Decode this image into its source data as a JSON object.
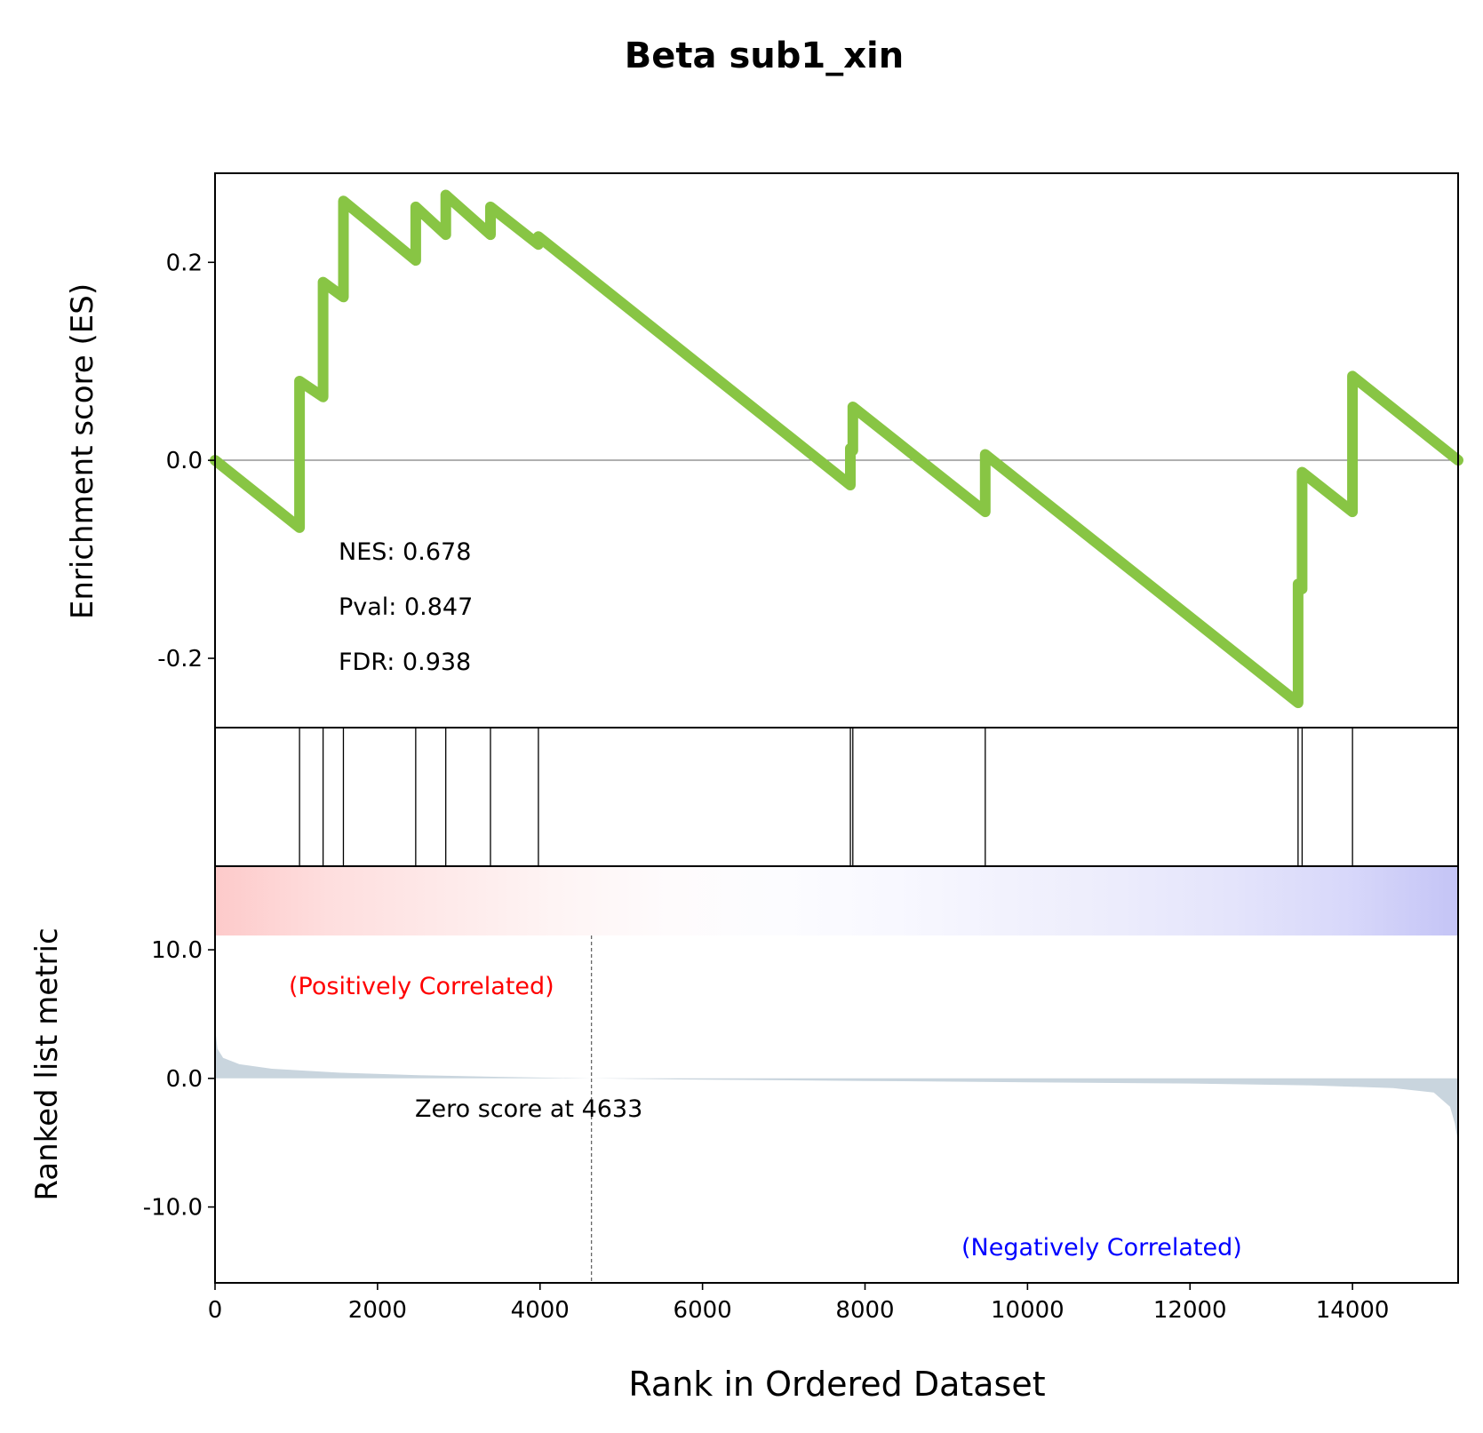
{
  "chart_data": {
    "type": "line",
    "title": "Beta sub1_xin",
    "xlabel": "Rank in Ordered Dataset",
    "es_ylabel": "Enrichment score (ES)",
    "rank_ylabel": "Ranked list metric",
    "xlim": [
      0,
      15300
    ],
    "es_ylim": [
      -0.27,
      0.29
    ],
    "rank_ylim": [
      -15.9,
      16.5
    ],
    "x_ticks": [
      "0",
      "2000",
      "4000",
      "6000",
      "8000",
      "10000",
      "12000",
      "14000"
    ],
    "x_tick_values": [
      0,
      2000,
      4000,
      6000,
      8000,
      10000,
      12000,
      14000
    ],
    "es_ticks": [
      "0.2",
      "0.0",
      "-0.2"
    ],
    "es_tick_values": [
      0.2,
      0.0,
      -0.2
    ],
    "rank_ticks": [
      "10.0",
      "0.0",
      "-10.0"
    ],
    "rank_tick_values": [
      10.0,
      0.0,
      -10.0
    ],
    "line_color": "#88c544",
    "stats": {
      "nes": "NES: 0.678",
      "pval": "Pval: 0.847",
      "fdr": "FDR: 0.938"
    },
    "zero_score_label": "Zero score at 4633",
    "zero_score_rank": 4633,
    "pos_label": "(Positively Correlated)",
    "neg_label": "(Negatively Correlated)",
    "pos_color": "#ff0000",
    "neg_color": "#0000ff",
    "hit_ranks": [
      1040,
      1330,
      1580,
      2470,
      2840,
      3390,
      3980,
      7820,
      7850,
      9480,
      13330,
      13380,
      14000
    ],
    "es_curve": [
      [
        0,
        0.0
      ],
      [
        1040,
        -0.068
      ],
      [
        1040,
        0.08
      ],
      [
        1330,
        0.064
      ],
      [
        1330,
        0.18
      ],
      [
        1580,
        0.165
      ],
      [
        1580,
        0.262
      ],
      [
        2470,
        0.202
      ],
      [
        2470,
        0.256
      ],
      [
        2840,
        0.228
      ],
      [
        2840,
        0.268
      ],
      [
        3390,
        0.228
      ],
      [
        3390,
        0.256
      ],
      [
        3980,
        0.218
      ],
      [
        3980,
        0.226
      ],
      [
        7820,
        -0.025
      ],
      [
        7820,
        0.012
      ],
      [
        7850,
        0.01
      ],
      [
        7850,
        0.054
      ],
      [
        9480,
        -0.052
      ],
      [
        9480,
        0.006
      ],
      [
        13330,
        -0.245
      ],
      [
        13330,
        -0.125
      ],
      [
        13380,
        -0.13
      ],
      [
        13380,
        -0.012
      ],
      [
        14000,
        -0.052
      ],
      [
        14000,
        0.085
      ],
      [
        15300,
        0.0
      ]
    ],
    "rank_metric": [
      [
        0,
        4.0
      ],
      [
        30,
        2.3
      ],
      [
        100,
        1.6
      ],
      [
        300,
        1.1
      ],
      [
        700,
        0.75
      ],
      [
        1500,
        0.45
      ],
      [
        2500,
        0.25
      ],
      [
        3500,
        0.12
      ],
      [
        4633,
        0.0
      ],
      [
        6000,
        -0.1
      ],
      [
        8000,
        -0.2
      ],
      [
        10000,
        -0.3
      ],
      [
        12000,
        -0.4
      ],
      [
        13500,
        -0.55
      ],
      [
        14500,
        -0.75
      ],
      [
        15000,
        -1.1
      ],
      [
        15200,
        -2.2
      ],
      [
        15260,
        -3.5
      ],
      [
        15300,
        -5.0
      ]
    ],
    "color_bar": [
      "#fdcaca",
      "#fedede",
      "#fee9e9",
      "#fef4f4",
      "#fefbfc",
      "#fcfcff",
      "#f8f8ff",
      "#f2f2fd",
      "#ececfc",
      "#e4e4fb",
      "#d8d8fa",
      "#c4c4f6"
    ]
  }
}
